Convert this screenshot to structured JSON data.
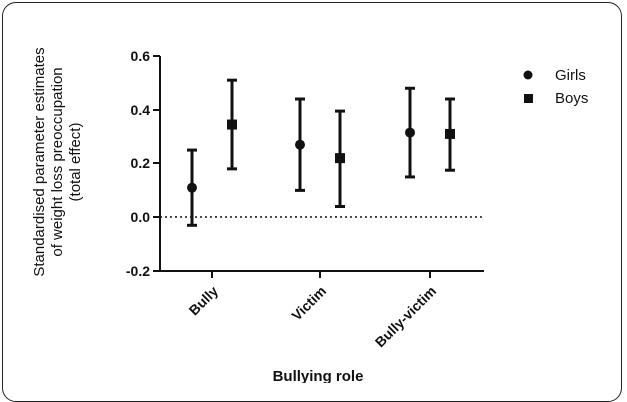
{
  "chart_data": {
    "type": "scatter",
    "categories": [
      "Bully",
      "Victim",
      "Bully-victim"
    ],
    "series": [
      {
        "name": "Girls",
        "marker": "circle",
        "values": [
          0.11,
          0.27,
          0.315
        ],
        "lower": [
          -0.03,
          0.1,
          0.15
        ],
        "upper": [
          0.25,
          0.44,
          0.48
        ]
      },
      {
        "name": "Boys",
        "marker": "square",
        "values": [
          0.345,
          0.22,
          0.31
        ],
        "lower": [
          0.18,
          0.04,
          0.175
        ],
        "upper": [
          0.51,
          0.395,
          0.44
        ]
      }
    ],
    "yticks": [
      "-0.2",
      "0.0",
      "0.2",
      "0.4",
      "0.6"
    ],
    "ylim": [
      -0.2,
      0.6
    ],
    "reference_line": 0.0,
    "ylabel": [
      "Standardised parameter estimates",
      "of weight loss preoccupation",
      "(total effect)"
    ],
    "xlabel": "Bullying role",
    "legend": "right",
    "color": "#111111"
  }
}
